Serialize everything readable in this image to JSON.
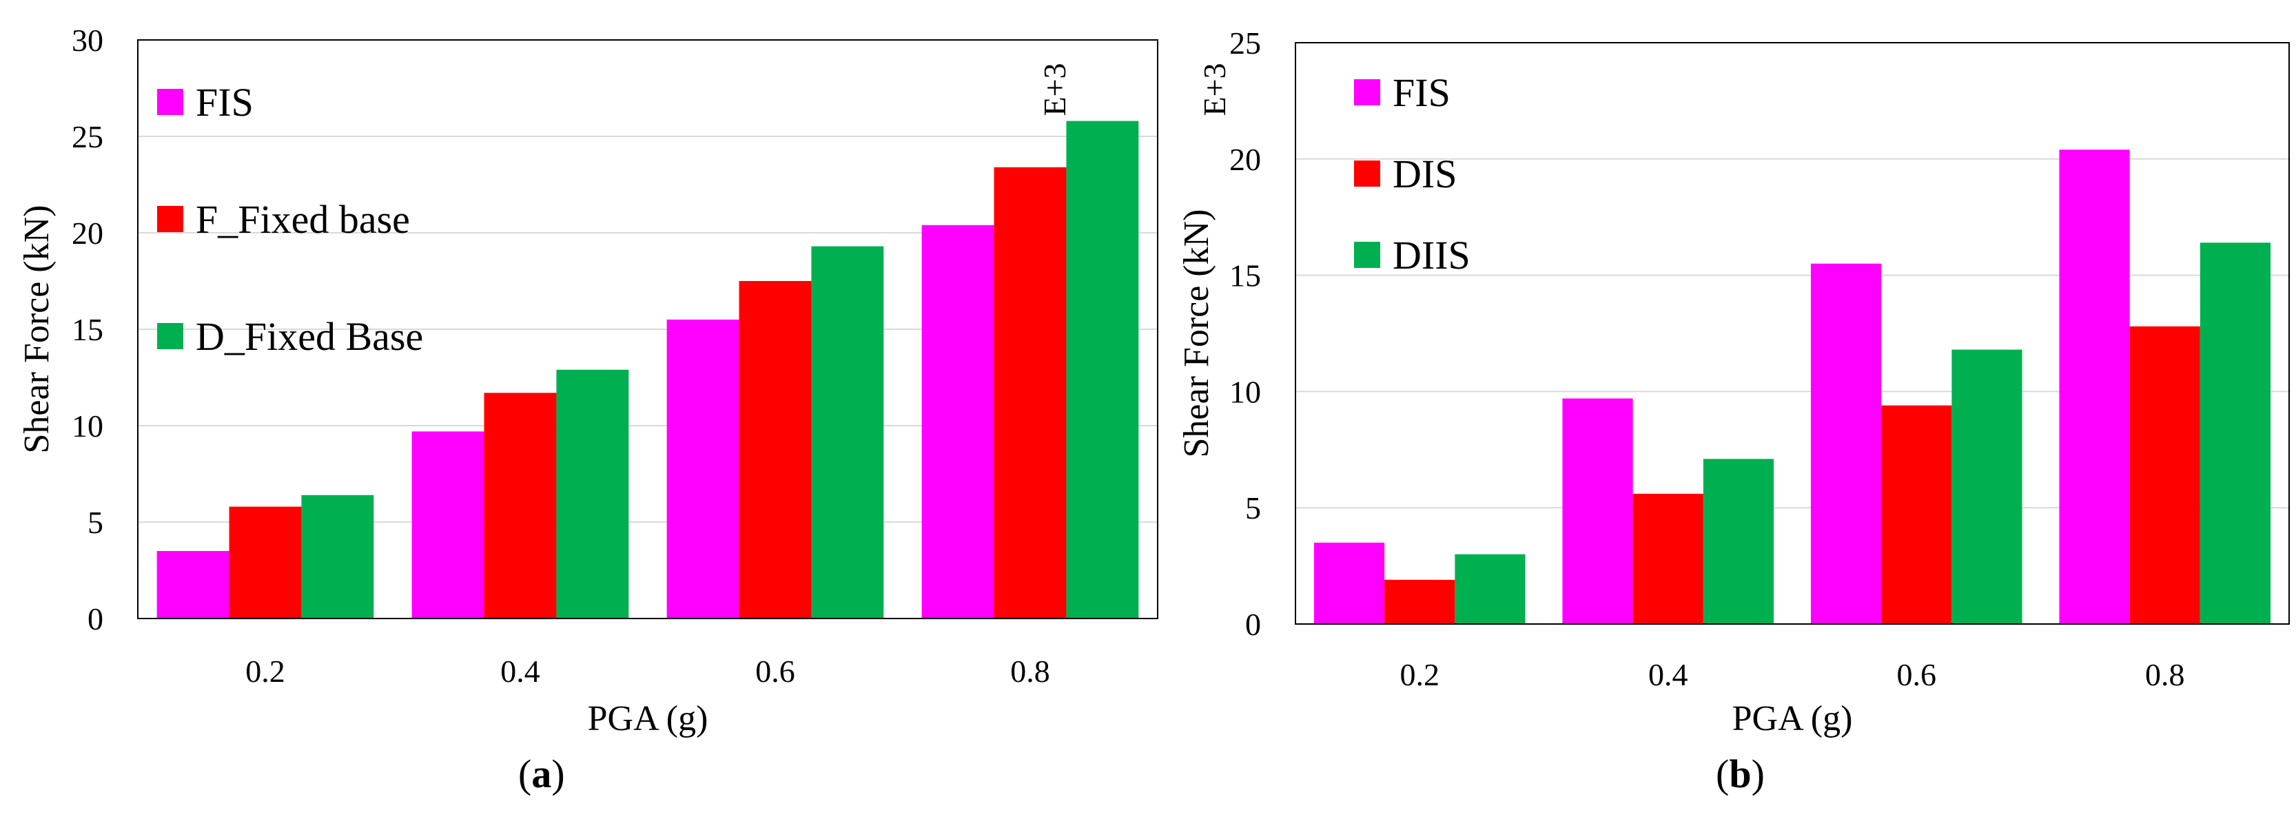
{
  "figure": {
    "panel_a_caption": "a",
    "panel_b_caption": "b"
  },
  "chart_data": [
    {
      "panel": "a",
      "type": "bar",
      "title": "",
      "xlabel": "PGA (g)",
      "ylabel": "Shear Force (kN)",
      "multiplier_label": "E+3",
      "categories": [
        "0.2",
        "0.4",
        "0.6",
        "0.8"
      ],
      "ylim": [
        0,
        30
      ],
      "yticks": [
        "0",
        "5",
        "10",
        "15",
        "20",
        "25",
        "30"
      ],
      "grid": true,
      "legend_position": "top-left",
      "series": [
        {
          "name": "FIS",
          "color": "#ff00ff",
          "values": [
            3.5,
            9.7,
            15.5,
            20.4
          ]
        },
        {
          "name": "F_Fixed base",
          "color": "#ff0000",
          "values": [
            5.8,
            11.7,
            17.5,
            23.4
          ]
        },
        {
          "name": "D_Fixed Base",
          "color": "#00b050",
          "values": [
            6.4,
            12.9,
            19.3,
            25.8
          ]
        }
      ]
    },
    {
      "panel": "b",
      "type": "bar",
      "title": "",
      "xlabel": "PGA (g)",
      "ylabel": "Shear Force (kN)",
      "multiplier_label": "E+3",
      "categories": [
        "0.2",
        "0.4",
        "0.6",
        "0.8"
      ],
      "ylim": [
        0,
        25
      ],
      "yticks": [
        "0",
        "5",
        "10",
        "15",
        "20",
        "25"
      ],
      "grid": true,
      "legend_position": "top-left",
      "series": [
        {
          "name": "FIS",
          "color": "#ff00ff",
          "values": [
            3.5,
            9.7,
            15.5,
            20.4
          ]
        },
        {
          "name": "DIS",
          "color": "#ff0000",
          "values": [
            1.9,
            5.6,
            9.4,
            12.8
          ]
        },
        {
          "name": "DIIS",
          "color": "#00b050",
          "values": [
            3.0,
            7.1,
            11.8,
            16.4
          ]
        }
      ]
    }
  ]
}
